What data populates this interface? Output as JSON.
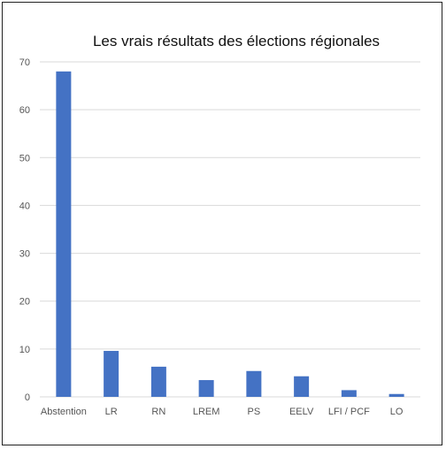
{
  "chart_data": {
    "type": "bar",
    "title": "Les vrais résultats des élections régionales",
    "xlabel": "",
    "ylabel": "",
    "categories": [
      "Abstention",
      "LR",
      "RN",
      "LREM",
      "PS",
      "EELV",
      "LFI / PCF",
      "LO"
    ],
    "values": [
      68,
      9.6,
      6.3,
      3.5,
      5.4,
      4.3,
      1.4,
      0.6
    ],
    "ylim": [
      0,
      70
    ],
    "yticks": [
      0,
      10,
      20,
      30,
      40,
      50,
      60,
      70
    ],
    "grid": true,
    "legend": "none",
    "bar_color": "#4472C4"
  }
}
